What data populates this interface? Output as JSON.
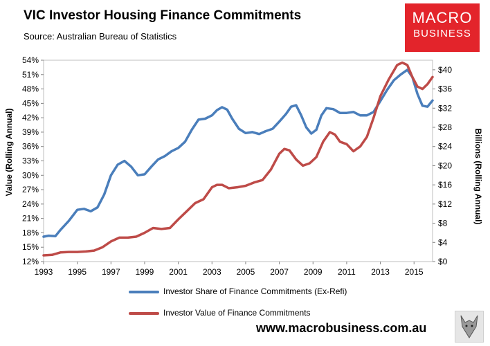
{
  "header": {
    "title": "VIC Investor Housing Finance Commitments",
    "subtitle": "Source: Australian Bureau of Statistics"
  },
  "logo": {
    "line1": "MACRO",
    "line2": "BUSINESS"
  },
  "footer": {
    "website": "www.macrobusiness.com.au"
  },
  "chart_data": {
    "type": "line",
    "title": "VIC Investor Housing Finance Commitments",
    "subtitle": "Source: Australian Bureau of Statistics",
    "xlabel": "",
    "ylabel": "Value (Rolling Annual)",
    "ylabel_right": "Billions (Rolling Annual)",
    "x_range": [
      1993,
      2016.1
    ],
    "x_ticks": [
      "1993",
      "1995",
      "1997",
      "1999",
      "2001",
      "2003",
      "2005",
      "2007",
      "2009",
      "2011",
      "2013",
      "2015"
    ],
    "ylim": [
      0.12,
      0.54
    ],
    "y_ticks": [
      "12%",
      "15%",
      "18%",
      "21%",
      "24%",
      "27%",
      "30%",
      "33%",
      "36%",
      "39%",
      "42%",
      "45%",
      "48%",
      "51%",
      "54%"
    ],
    "ylim_right": [
      0,
      42
    ],
    "y_ticks_right": [
      "$0",
      "$4",
      "$8",
      "$12",
      "$16",
      "$20",
      "$24",
      "$28",
      "$32",
      "$36",
      "$40"
    ],
    "grid": false,
    "legend_position": "bottom",
    "colors": {
      "share": "#4a7ebb",
      "value": "#be4b48"
    },
    "series": [
      {
        "name": "Investor Share of Finance Commitments (Ex-Refi)",
        "axis": "left",
        "x": [
          1993.0,
          1993.3,
          1993.7,
          1994.0,
          1994.5,
          1995.0,
          1995.4,
          1995.8,
          1996.2,
          1996.6,
          1997.0,
          1997.4,
          1997.8,
          1998.2,
          1998.6,
          1999.0,
          1999.4,
          1999.8,
          2000.2,
          2000.6,
          2001.0,
          2001.4,
          2001.8,
          2002.2,
          2002.6,
          2003.0,
          2003.3,
          2003.6,
          2003.9,
          2004.2,
          2004.6,
          2005.0,
          2005.4,
          2005.8,
          2006.2,
          2006.6,
          2007.0,
          2007.4,
          2007.7,
          2008.0,
          2008.3,
          2008.6,
          2008.9,
          2009.2,
          2009.5,
          2009.8,
          2010.2,
          2010.6,
          2011.0,
          2011.4,
          2011.8,
          2012.2,
          2012.6,
          2013.0,
          2013.4,
          2013.8,
          2014.2,
          2014.6,
          2014.9,
          2015.2,
          2015.5,
          2015.8,
          2016.1
        ],
        "values": [
          0.172,
          0.174,
          0.173,
          0.186,
          0.205,
          0.228,
          0.23,
          0.225,
          0.233,
          0.26,
          0.3,
          0.322,
          0.33,
          0.318,
          0.3,
          0.302,
          0.318,
          0.333,
          0.34,
          0.35,
          0.357,
          0.37,
          0.395,
          0.416,
          0.418,
          0.425,
          0.436,
          0.442,
          0.437,
          0.418,
          0.397,
          0.388,
          0.39,
          0.386,
          0.392,
          0.397,
          0.412,
          0.428,
          0.443,
          0.446,
          0.425,
          0.4,
          0.387,
          0.395,
          0.425,
          0.44,
          0.438,
          0.43,
          0.43,
          0.432,
          0.425,
          0.425,
          0.432,
          0.455,
          0.478,
          0.498,
          0.51,
          0.52,
          0.505,
          0.47,
          0.445,
          0.443,
          0.456
        ]
      },
      {
        "name": "Investor Value of Finance Commitments",
        "axis": "right",
        "x": [
          1993.0,
          1993.5,
          1994.0,
          1994.5,
          1995.0,
          1995.5,
          1996.0,
          1996.5,
          1997.0,
          1997.5,
          1998.0,
          1998.5,
          1999.0,
          1999.5,
          2000.0,
          2000.5,
          2001.0,
          2001.5,
          2002.0,
          2002.5,
          2003.0,
          2003.3,
          2003.6,
          2004.0,
          2004.5,
          2005.0,
          2005.5,
          2006.0,
          2006.5,
          2007.0,
          2007.3,
          2007.6,
          2008.0,
          2008.4,
          2008.8,
          2009.2,
          2009.6,
          2010.0,
          2010.3,
          2010.6,
          2011.0,
          2011.4,
          2011.8,
          2012.2,
          2012.6,
          2013.0,
          2013.5,
          2014.0,
          2014.3,
          2014.6,
          2014.9,
          2015.2,
          2015.5,
          2015.8,
          2016.1
        ],
        "values": [
          1.3,
          1.4,
          1.9,
          2.0,
          2.0,
          2.1,
          2.3,
          3.0,
          4.2,
          5.0,
          5.0,
          5.2,
          6.0,
          7.0,
          6.8,
          7.0,
          8.8,
          10.5,
          12.2,
          13.0,
          15.5,
          16.0,
          16.0,
          15.3,
          15.5,
          15.8,
          16.5,
          17.0,
          19.2,
          22.5,
          23.5,
          23.2,
          21.3,
          20.0,
          20.5,
          21.8,
          25.0,
          27.0,
          26.5,
          25.0,
          24.5,
          23.0,
          24.0,
          26.0,
          30.0,
          34.5,
          38.0,
          41.0,
          41.5,
          41.0,
          38.5,
          36.5,
          36.0,
          37.0,
          38.5
        ]
      }
    ]
  }
}
